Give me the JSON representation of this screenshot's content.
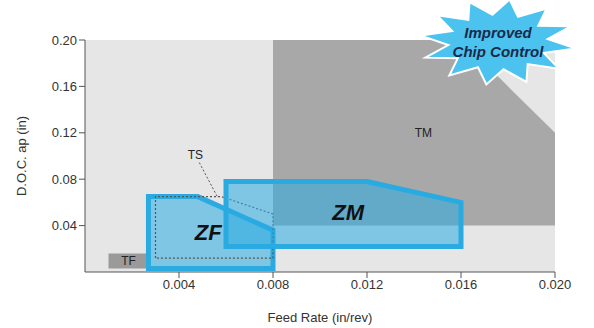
{
  "chart_data": {
    "type": "area",
    "xlabel": "Feed Rate (in/rev)",
    "ylabel": "D.O.C. ap (in)",
    "xlim": [
      0,
      0.02
    ],
    "xticks": [
      0.004,
      0.008,
      0.012,
      0.016,
      {
        "value": 0.02,
        "label": "0.020"
      }
    ],
    "ylim": [
      0,
      0.2
    ],
    "yticks": [
      0.04,
      0.08,
      0.12,
      0.16,
      {
        "value": 0.2,
        "label": "0.20"
      }
    ],
    "series": [
      {
        "name": "TM",
        "color": "#a8a8a8",
        "x": [
          0.008,
          0.008,
          0.016,
          0.02,
          0.02
        ],
        "y": [
          0.04,
          0.2,
          0.2,
          0.12,
          0.04
        ]
      },
      {
        "name": "TF",
        "color": "#9a9a9a",
        "x": [
          0.001,
          0.001,
          0.0027,
          0.0027
        ],
        "y": [
          0.003,
          0.016,
          0.016,
          0.003
        ]
      },
      {
        "name": "ZF",
        "color": "#29abe2",
        "line_style": "solid",
        "x": [
          0.0027,
          0.0027,
          0.0048,
          0.008,
          0.008
        ],
        "y": [
          0.003,
          0.065,
          0.065,
          0.036,
          0.003
        ]
      },
      {
        "name": "TS",
        "color": "#555555",
        "line_style": "dotted",
        "x": [
          0.003,
          0.003,
          0.0058,
          0.008,
          0.008
        ],
        "y": [
          0.012,
          0.065,
          0.065,
          0.05,
          0.012
        ]
      },
      {
        "name": "ZM",
        "color": "#29abe2",
        "line_style": "solid",
        "x": [
          0.006,
          0.006,
          0.012,
          0.016,
          0.016
        ],
        "y": [
          0.022,
          0.078,
          0.078,
          0.06,
          0.022
        ]
      }
    ],
    "annotations": [
      "Improved Chip Control"
    ]
  }
}
